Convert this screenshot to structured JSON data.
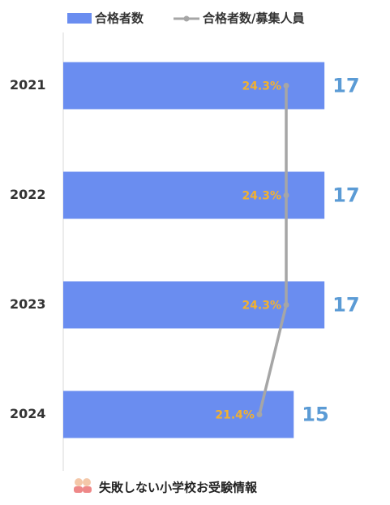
{
  "chart_data": {
    "type": "bar-line",
    "categories": [
      "2021",
      "2022",
      "2023",
      "2024"
    ],
    "series": [
      {
        "name": "合格者数",
        "type": "bar",
        "color": "#6a8df0",
        "label_color": "#5b9bd5",
        "values": [
          17,
          17,
          17,
          15
        ]
      },
      {
        "name": "合格者数/募集人員",
        "type": "line",
        "color": "#a6a6a6",
        "label_color": "#f2b12f",
        "values": [
          24.3,
          24.3,
          24.3,
          21.4
        ],
        "value_labels": [
          "24.3%",
          "24.3%",
          "24.3%",
          "21.4%"
        ]
      }
    ],
    "footer": "失敗しない小学校お受験情報"
  }
}
